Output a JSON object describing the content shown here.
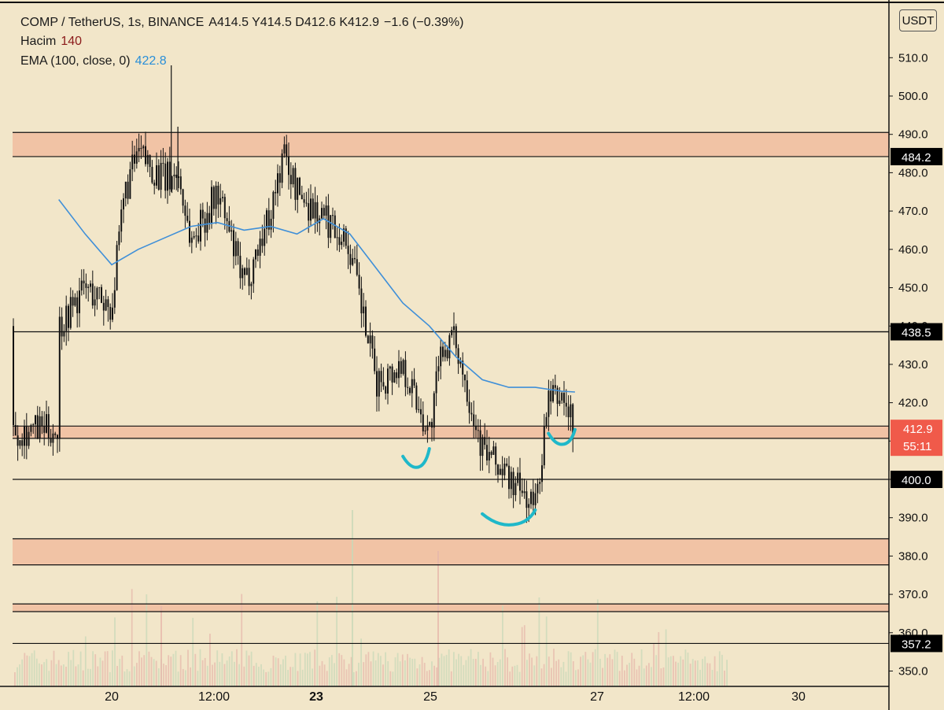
{
  "header": {
    "symbol": "COMP / TetherUS, 1s, BINANCE",
    "ohlc": "A414.5  Y414.5  D412.6  K412.9",
    "change": "−1.6 (−0.39%)",
    "volume_label": "Hacim",
    "volume_value": "140",
    "ema_label": "EMA (100, close, 0)",
    "ema_value": "422.8"
  },
  "unit_button": "USDT",
  "colors": {
    "background": "#f2e6c9",
    "zone": "#f1c3a5",
    "candle": "#111111",
    "ema": "#3f8fd8",
    "marker": "#1fb8c9",
    "price_label": "#f05a4a"
  },
  "chart_data": {
    "type": "candlestick",
    "series": [
      {
        "name": "EMA (100, close, 0)",
        "x": [
          "19 00:00",
          "19 12:00",
          "20 00:00",
          "20 12:00",
          "21 00:00",
          "21 12:00",
          "22 00:00",
          "22 12:00",
          "23 00:00",
          "23 12:00",
          "24 00:00",
          "24 12:00",
          "25 00:00",
          "25 12:00",
          "26 00:00",
          "26 12:00",
          "27 00:00",
          "27 12:00",
          "28 00:00",
          "28 12:00",
          "28 18:00"
        ],
        "values": [
          473,
          464,
          456,
          460,
          463,
          466,
          467,
          465,
          466,
          464,
          468,
          464,
          455,
          446,
          440,
          432,
          426,
          424,
          424,
          423,
          422.8
        ]
      },
      {
        "name": "Price (approx. path)",
        "x": [
          "19 00:00",
          "19 12:00",
          "20 00:00",
          "20 06:00",
          "20 12:00",
          "21 00:00",
          "21 06:00",
          "21 12:00",
          "22 00:00",
          "22 12:00",
          "23 00:00",
          "23 06:00",
          "23 12:00",
          "24 00:00",
          "24 06:00",
          "24 12:00",
          "25 00:00",
          "25 12:00",
          "26 00:00",
          "26 06:00",
          "26 12:00",
          "27 00:00",
          "27 12:00",
          "28 00:00",
          "28 06:00",
          "28 12:00",
          "28 18:00"
        ],
        "values": [
          440,
          450,
          445,
          475,
          485,
          478,
          480,
          462,
          475,
          450,
          470,
          485,
          475,
          468,
          466,
          460,
          425,
          430,
          412,
          435,
          436,
          408,
          400,
          393,
          420,
          422,
          412.9
        ]
      }
    ],
    "spikes": [
      {
        "x": "21 03:00",
        "high": 508
      },
      {
        "x": "21 06:00",
        "high": 492
      }
    ],
    "horizontal_lines": [
      490.5,
      484.2,
      438.5,
      413.9,
      410.7,
      400.0,
      384.5,
      377.7,
      367.5,
      365.5,
      357.2
    ],
    "zones": [
      [
        484.2,
        490.5
      ],
      [
        410.7,
        413.9
      ],
      [
        377.7,
        384.5
      ],
      [
        365.5,
        367.5
      ]
    ],
    "ylim": [
      345,
      520
    ],
    "y_ticks": [
      "350.0",
      "360.0",
      "370.0",
      "380.0",
      "390.0",
      "400.0",
      "410.0",
      "420.0",
      "430.0",
      "440.0",
      "450.0",
      "460.0",
      "470.0",
      "480.0",
      "490.0",
      "500.0",
      "510.0"
    ],
    "x_tick_labels": [
      "20",
      "12:00",
      "23",
      "25",
      "27",
      "12:00",
      "30"
    ],
    "price_labels": [
      {
        "value": 484.2,
        "text": "484.2",
        "style": "black"
      },
      {
        "value": 438.5,
        "text": "438.5",
        "style": "black"
      },
      {
        "value": 400.0,
        "text": "400.0",
        "style": "black"
      },
      {
        "value": 357.2,
        "text": "357.2",
        "style": "black"
      }
    ],
    "current_price": {
      "value": 412.9,
      "text": "412.9",
      "countdown": "55:11"
    },
    "annotations": [
      {
        "type": "handdrawn-cup",
        "around": [
          [
            "25 12:00",
            406
          ],
          [
            "26 00:00",
            408
          ]
        ]
      },
      {
        "type": "handdrawn-cup",
        "around": [
          [
            "27 00:00",
            391
          ],
          [
            "28 00:00",
            392
          ]
        ]
      },
      {
        "type": "handdrawn-cup",
        "around": [
          [
            "28 06:00",
            412
          ],
          [
            "28 18:00",
            413
          ]
        ]
      }
    ],
    "volume_panel": true,
    "grid": false,
    "legend_position": "top-left"
  }
}
